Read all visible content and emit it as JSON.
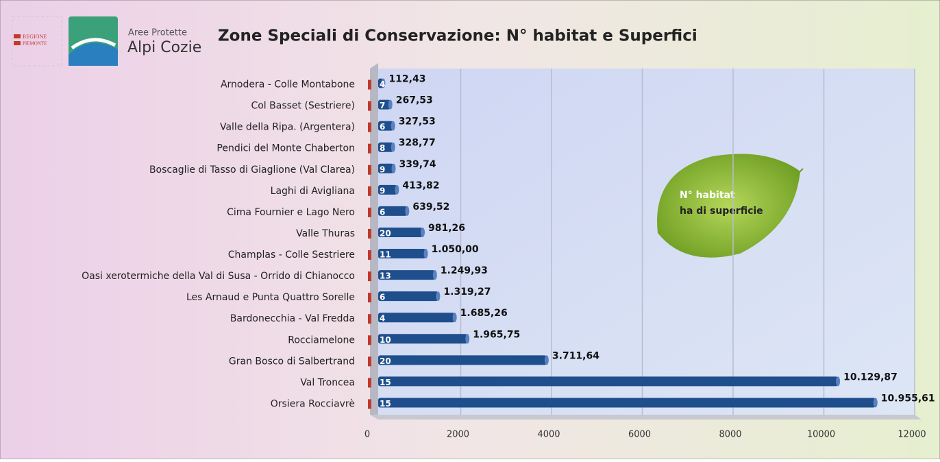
{
  "logos": {
    "region": [
      "REGIONE",
      "PIEMONTE"
    ],
    "park_top": "Aree Protette",
    "park_name": "Alpi Cozie"
  },
  "chart_data": {
    "type": "bar",
    "orientation": "horizontal",
    "title": "Zone Speciali di Conservazione: N° habitat e Superfici",
    "categories": [
      "Arnodera - Colle Montabone",
      "Col Basset (Sestriere)",
      "Valle della Ripa. (Argentera)",
      "Pendici del Monte Chaberton",
      "Boscaglie di Tasso di Giaglione (Val Clarea)",
      "Laghi di Avigliana",
      "Cima Fournier e Lago Nero",
      "Valle Thuras",
      "Champlas - Colle Sestriere",
      "Oasi xerotermiche della Val di Susa - Orrido di Chianocco",
      "Les Arnaud e Punta Quattro Sorelle",
      "Bardonecchia - Val Fredda",
      "Rocciamelone",
      "Gran Bosco di Salbertrand",
      "Val Troncea",
      "Orsiera Rocciavrè"
    ],
    "series": [
      {
        "name": "N° habitat",
        "color": "#c0392b",
        "values": [
          4,
          7,
          6,
          8,
          9,
          9,
          6,
          20,
          11,
          13,
          6,
          4,
          10,
          20,
          15,
          15
        ]
      },
      {
        "name": "ha di superficie",
        "color": "#1f4e8c",
        "values": [
          112.43,
          267.53,
          327.53,
          328.77,
          339.74,
          413.82,
          639.52,
          981.26,
          1050.0,
          1249.93,
          1319.27,
          1685.26,
          1965.75,
          3711.64,
          10129.87,
          10955.61
        ],
        "value_labels": [
          "112,43",
          "267,53",
          "327,53",
          "328,77",
          "339,74",
          "413,82",
          "639,52",
          "981,26",
          "1.050,00",
          "1.249,93",
          "1.319,27",
          "1.685,26",
          "1.965,75",
          "3.711,64",
          "10.129,87",
          "10.955,61"
        ]
      }
    ],
    "xlim": [
      0,
      12000
    ],
    "xticks": [
      0,
      2000,
      4000,
      6000,
      8000,
      10000,
      12000
    ],
    "grid": true
  }
}
